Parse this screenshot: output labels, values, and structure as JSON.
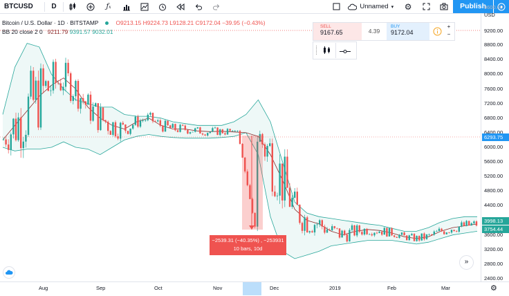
{
  "toolbar": {
    "symbol": "BTCUSD",
    "interval": "D",
    "layout_name": "Unnamed",
    "publish_label": "Publish"
  },
  "legend": {
    "title": "Bitcoin / U.S. Dollar · 1D · BITSTAMP",
    "ohlc": "O9213.15 H9224.73 L9128.21 C9172.04 −39.95 (−0.43%)",
    "bb_label": "BB 20 close 2 0",
    "bb_mid": "9211.79",
    "bb_upper": "9391.57",
    "bb_lower": "9032.01"
  },
  "trade": {
    "sell_label": "SELL",
    "sell_price": "9167.65",
    "spread": "4.39",
    "buy_label": "BUY",
    "buy_price": "9172.04"
  },
  "price_axis": {
    "top_labels": [
      "9600.00",
      "9200.00"
    ],
    "currency": "USD",
    "ticks": [
      8800,
      8400,
      8000,
      7600,
      7200,
      6800,
      6400,
      6000,
      5600,
      5200,
      4800,
      4400,
      4000,
      3600,
      3200,
      2800,
      2400
    ],
    "tag_upper": "6293.75",
    "tag_mid": "3998.13",
    "tag_lower": "3754.44"
  },
  "time_axis": {
    "labels": [
      "Aug",
      "Sep",
      "Oct",
      "Nov",
      "Dec",
      "2019",
      "Feb",
      "Mar"
    ]
  },
  "measure": {
    "line1": "−2539.31 (−40.35%) , −253931",
    "line2": "10 bars, 10d"
  },
  "colors": {
    "up": "#26a69a",
    "down": "#ef5350",
    "basis": "#8b2a2a",
    "band": "#26a69a",
    "accent": "#2196f3"
  },
  "chart_data": {
    "type": "candlestick",
    "ylim": [
      2400,
      9600
    ],
    "basis": [
      6200,
      6600,
      7000,
      7400,
      7700,
      7900,
      7600,
      7100,
      6800,
      6600,
      6500,
      6700,
      6800,
      6600,
      6500,
      6500,
      6450,
      6430,
      6440,
      6420,
      6400,
      6300,
      5800,
      5100,
      4300,
      4000,
      3900,
      3700,
      3600,
      3700,
      3750,
      3720,
      3650,
      3550,
      3500,
      3550,
      3700,
      3800,
      3850,
      3900
    ],
    "upper": [
      6900,
      8200,
      8850,
      8750,
      8000,
      7600,
      7300,
      7200,
      7100,
      7100,
      6900,
      6850,
      6850,
      6800,
      6700,
      6650,
      6600,
      6600,
      6600,
      6700,
      6900,
      7300,
      6700,
      5600,
      4500,
      4200,
      4100,
      4050,
      4000,
      3950,
      3900,
      3860,
      3780,
      3700,
      3700,
      3800,
      3950,
      4050,
      4100,
      4100
    ],
    "lower": [
      6000,
      5900,
      5950,
      5950,
      6000,
      6150,
      6000,
      5950,
      5800,
      6000,
      6200,
      6300,
      6350,
      6300,
      6270,
      6250,
      6250,
      6250,
      6270,
      6300,
      6400,
      5800,
      4100,
      3150,
      2950,
      3050,
      3150,
      3300,
      3350,
      3400,
      3450,
      3450,
      3450,
      3400,
      3350,
      3400,
      3500,
      3600,
      3650,
      3700
    ]
  }
}
